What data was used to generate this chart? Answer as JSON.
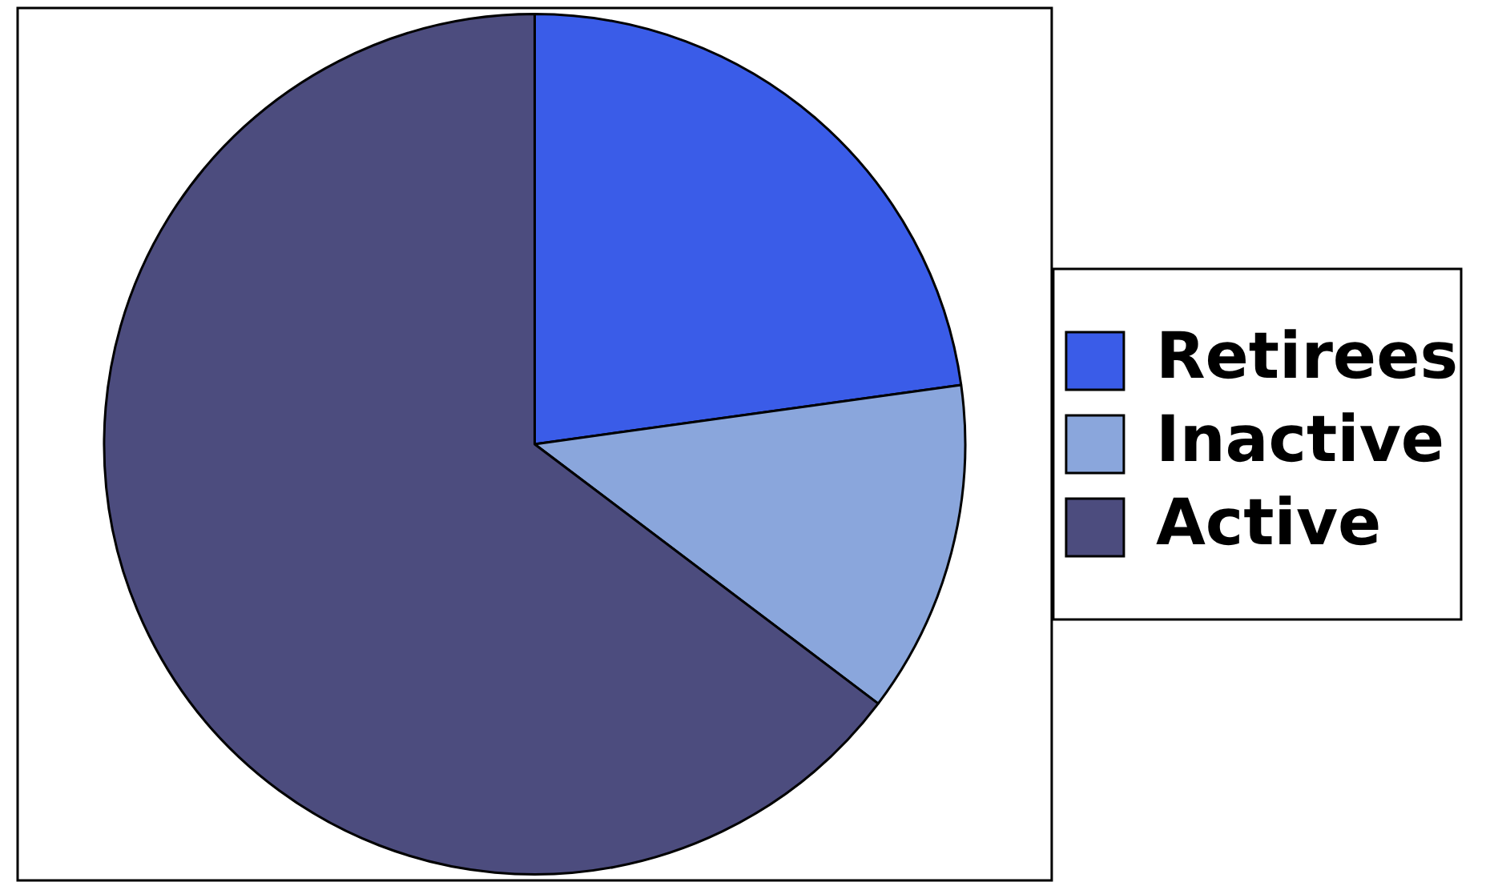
{
  "chart_data": {
    "type": "pie",
    "categories": [
      "Retirees",
      "Inactive",
      "Active"
    ],
    "values": [
      22.8,
      12.5,
      64.7
    ],
    "colors": [
      "#3a5ce8",
      "#8aa6dc",
      "#4c4c7e"
    ],
    "legend": "right"
  }
}
